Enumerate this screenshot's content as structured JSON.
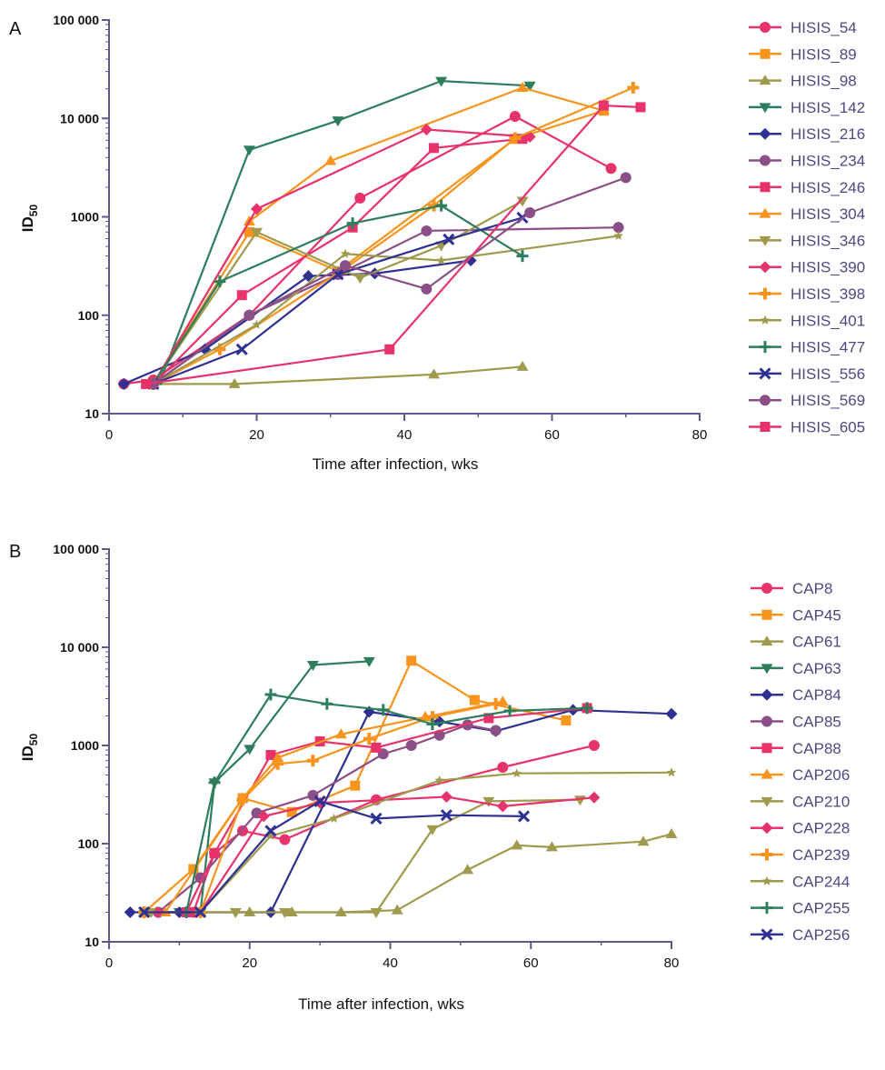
{
  "chart_data": [
    {
      "panel_label": "A",
      "type": "line",
      "xlabel": "Time after infection, wks",
      "ylabel": "ID",
      "ylabel_sub": "50",
      "xlim": [
        0,
        80
      ],
      "ylim": [
        10,
        100000
      ],
      "yscale": "log",
      "xticks": [
        0,
        20,
        40,
        60,
        80
      ],
      "yticks": [
        {
          "value": 10,
          "label": "10"
        },
        {
          "value": 100,
          "label": "100"
        },
        {
          "value": 1000,
          "label": "1000"
        },
        {
          "value": 10000,
          "label": "10 000"
        },
        {
          "value": 100000,
          "label": "100 000"
        }
      ],
      "legend_position": "right",
      "series": [
        {
          "name": "HISIS_54",
          "color": "#e8336a",
          "marker": "circle",
          "points": [
            [
              2,
              20
            ],
            [
              6,
              22
            ],
            [
              19,
              100
            ],
            [
              34,
              1550
            ],
            [
              55,
              10500
            ],
            [
              68,
              3100
            ]
          ]
        },
        {
          "name": "HISIS_89",
          "color": "#f7941d",
          "marker": "square",
          "points": [
            [
              6,
              20
            ],
            [
              19,
              700
            ],
            [
              31,
              280
            ],
            [
              55,
              6200
            ],
            [
              67,
              12000
            ]
          ]
        },
        {
          "name": "HISIS_98",
          "color": "#9f9a4e",
          "marker": "triangle-up",
          "points": [
            [
              6,
              20
            ],
            [
              17,
              20
            ],
            [
              44,
              25
            ],
            [
              56,
              30
            ]
          ]
        },
        {
          "name": "HISIS_142",
          "color": "#2e7d5b",
          "marker": "triangle-down",
          "points": [
            [
              7,
              22
            ],
            [
              19,
              4800
            ],
            [
              31,
              9500
            ],
            [
              45,
              24000
            ],
            [
              57,
              21500
            ]
          ]
        },
        {
          "name": "HISIS_216",
          "color": "#2e3192",
          "marker": "diamond",
          "points": [
            [
              2,
              20
            ],
            [
              13,
              45
            ],
            [
              27,
              250
            ],
            [
              36,
              265
            ],
            [
              49,
              360
            ]
          ]
        },
        {
          "name": "HISIS_234",
          "color": "#8b4f87",
          "marker": "circle",
          "points": [
            [
              6,
              20
            ],
            [
              19,
              100
            ],
            [
              31,
              260
            ],
            [
              43,
              720
            ],
            [
              69,
              780
            ]
          ]
        },
        {
          "name": "HISIS_246",
          "color": "#e8336a",
          "marker": "square",
          "points": [
            [
              6,
              20
            ],
            [
              18,
              160
            ],
            [
              33,
              780
            ],
            [
              44,
              5000
            ],
            [
              56,
              6200
            ]
          ]
        },
        {
          "name": "HISIS_304",
          "color": "#f7941d",
          "marker": "triangle-up",
          "points": [
            [
              6,
              20
            ],
            [
              19,
              900
            ],
            [
              30,
              3700
            ],
            [
              56,
              20500
            ],
            [
              67,
              12000
            ]
          ]
        },
        {
          "name": "HISIS_346",
          "color": "#9f9a4e",
          "marker": "triangle-down",
          "points": [
            [
              6,
              20
            ],
            [
              20,
              700
            ],
            [
              34,
              240
            ],
            [
              45,
              510
            ],
            [
              56,
              1450
            ]
          ]
        },
        {
          "name": "HISIS_390",
          "color": "#e8336a",
          "marker": "diamond",
          "points": [
            [
              6,
              20
            ],
            [
              20,
              1200
            ],
            [
              43,
              7700
            ],
            [
              57,
              6500
            ]
          ]
        },
        {
          "name": "HISIS_398",
          "color": "#f7941d",
          "marker": "plus-square",
          "points": [
            [
              6,
              20
            ],
            [
              15,
              45
            ],
            [
              32,
              300
            ],
            [
              44,
              1300
            ],
            [
              55,
              6300
            ],
            [
              71,
              20500
            ]
          ]
        },
        {
          "name": "HISIS_401",
          "color": "#9f9a4e",
          "marker": "star",
          "points": [
            [
              6,
              20
            ],
            [
              20,
              80
            ],
            [
              32,
              420
            ],
            [
              45,
              360
            ],
            [
              69,
              640
            ]
          ]
        },
        {
          "name": "HISIS_477",
          "color": "#2e7d5b",
          "marker": "plus",
          "points": [
            [
              6,
              20
            ],
            [
              15,
              220
            ],
            [
              33,
              860
            ],
            [
              45,
              1300
            ],
            [
              56,
              400
            ]
          ]
        },
        {
          "name": "HISIS_556",
          "color": "#2e3192",
          "marker": "x",
          "points": [
            [
              6,
              20
            ],
            [
              18,
              45
            ],
            [
              31,
              260
            ],
            [
              46,
              590
            ],
            [
              56,
              980
            ]
          ]
        },
        {
          "name": "HISIS_569",
          "color": "#8b4f87",
          "marker": "circle",
          "points": [
            [
              6,
              20
            ],
            [
              19,
              100
            ],
            [
              32,
              320
            ],
            [
              43,
              185
            ],
            [
              57,
              1100
            ],
            [
              70,
              2500
            ]
          ]
        },
        {
          "name": "HISIS_605",
          "color": "#e8336a",
          "marker": "square",
          "points": [
            [
              5,
              20
            ],
            [
              38,
              45
            ],
            [
              67,
              13500
            ],
            [
              72,
              13000
            ]
          ]
        }
      ]
    },
    {
      "panel_label": "B",
      "type": "line",
      "xlabel": "Time after infection, wks",
      "ylabel": "ID",
      "ylabel_sub": "50",
      "xlim": [
        0,
        80
      ],
      "ylim": [
        10,
        100000
      ],
      "yscale": "log",
      "xticks": [
        0,
        20,
        40,
        60,
        80
      ],
      "yticks": [
        {
          "value": 10,
          "label": "10"
        },
        {
          "value": 100,
          "label": "100"
        },
        {
          "value": 1000,
          "label": "1000"
        },
        {
          "value": 10000,
          "label": "10 000"
        },
        {
          "value": 100000,
          "label": "100 000"
        }
      ],
      "legend_position": "right",
      "series": [
        {
          "name": "CAP8",
          "color": "#e8336a",
          "marker": "circle",
          "points": [
            [
              7,
              20
            ],
            [
              12,
              20
            ],
            [
              15,
              80
            ],
            [
              19,
              135
            ],
            [
              25,
              110
            ],
            [
              38,
              280
            ],
            [
              56,
              600
            ],
            [
              69,
              1000
            ]
          ]
        },
        {
          "name": "CAP45",
          "color": "#f7941d",
          "marker": "square",
          "points": [
            [
              5,
              20
            ],
            [
              12,
              55
            ],
            [
              19,
              290
            ],
            [
              26,
              210
            ],
            [
              35,
              390
            ],
            [
              43,
              7300
            ],
            [
              52,
              2900
            ],
            [
              65,
              1800
            ]
          ]
        },
        {
          "name": "CAP61",
          "color": "#9f9a4e",
          "marker": "triangle-up",
          "points": [
            [
              5,
              20
            ],
            [
              13,
              20
            ],
            [
              20,
              20
            ],
            [
              26,
              20
            ],
            [
              33,
              20
            ],
            [
              41,
              21
            ],
            [
              51,
              54
            ],
            [
              58,
              96
            ],
            [
              63,
              92
            ],
            [
              76,
              105
            ],
            [
              80,
              125
            ]
          ]
        },
        {
          "name": "CAP63",
          "color": "#2e7d5b",
          "marker": "triangle-down",
          "points": [
            [
              10,
              20
            ],
            [
              13,
              20
            ],
            [
              15,
              420
            ],
            [
              20,
              920
            ],
            [
              29,
              6600
            ],
            [
              37,
              7200
            ]
          ]
        },
        {
          "name": "CAP84",
          "color": "#2e3192",
          "marker": "diamond",
          "points": [
            [
              3,
              20
            ],
            [
              10,
              20
            ],
            [
              23,
              20
            ],
            [
              37,
              2200
            ],
            [
              47,
              1750
            ],
            [
              55,
              1400
            ],
            [
              66,
              2300
            ],
            [
              80,
              2100
            ]
          ]
        },
        {
          "name": "CAP85",
          "color": "#8b4f87",
          "marker": "circle",
          "points": [
            [
              7,
              20
            ],
            [
              13,
              45
            ],
            [
              21,
              205
            ],
            [
              29,
              310
            ],
            [
              39,
              820
            ],
            [
              43,
              1000
            ],
            [
              47,
              1270
            ],
            [
              51,
              1620
            ],
            [
              55,
              1420
            ]
          ]
        },
        {
          "name": "CAP88",
          "color": "#e8336a",
          "marker": "square",
          "points": [
            [
              11,
              20
            ],
            [
              15,
              80
            ],
            [
              23,
              800
            ],
            [
              30,
              1100
            ],
            [
              38,
              950
            ],
            [
              54,
              1900
            ],
            [
              68,
              2400
            ]
          ]
        },
        {
          "name": "CAP206",
          "color": "#f7941d",
          "marker": "triangle-up",
          "points": [
            [
              8,
              20
            ],
            [
              19,
              290
            ],
            [
              24,
              750
            ],
            [
              33,
              1300
            ],
            [
              45,
              1950
            ],
            [
              56,
              2800
            ]
          ]
        },
        {
          "name": "CAP210",
          "color": "#9f9a4e",
          "marker": "triangle-down",
          "points": [
            [
              6,
              20
            ],
            [
              18,
              20
            ],
            [
              25,
              20
            ],
            [
              38,
              20
            ],
            [
              46,
              140
            ],
            [
              54,
              270
            ],
            [
              67,
              280
            ]
          ]
        },
        {
          "name": "CAP228",
          "color": "#e8336a",
          "marker": "diamond",
          "points": [
            [
              7,
              20
            ],
            [
              13,
              20
            ],
            [
              22,
              190
            ],
            [
              30,
              260
            ],
            [
              48,
              300
            ],
            [
              56,
              240
            ],
            [
              69,
              295
            ]
          ]
        },
        {
          "name": "CAP239",
          "color": "#f7941d",
          "marker": "plus-square",
          "points": [
            [
              5,
              20
            ],
            [
              13,
              20
            ],
            [
              19,
              280
            ],
            [
              24,
              650
            ],
            [
              29,
              700
            ],
            [
              37,
              1170
            ],
            [
              46,
              1950
            ],
            [
              55,
              2650
            ]
          ]
        },
        {
          "name": "CAP244",
          "color": "#9f9a4e",
          "marker": "star",
          "points": [
            [
              5,
              20
            ],
            [
              13,
              20
            ],
            [
              23,
              120
            ],
            [
              32,
              180
            ],
            [
              47,
              440
            ],
            [
              58,
              520
            ],
            [
              80,
              530
            ]
          ]
        },
        {
          "name": "CAP255",
          "color": "#2e7d5b",
          "marker": "plus",
          "points": [
            [
              11,
              20
            ],
            [
              15,
              420
            ],
            [
              23,
              3300
            ],
            [
              31,
              2650
            ],
            [
              39,
              2300
            ],
            [
              46,
              1650
            ],
            [
              57,
              2250
            ],
            [
              68,
              2400
            ]
          ]
        },
        {
          "name": "CAP256",
          "color": "#2e3192",
          "marker": "x",
          "points": [
            [
              5,
              20
            ],
            [
              13,
              20
            ],
            [
              23,
              135
            ],
            [
              30,
              270
            ],
            [
              38,
              180
            ],
            [
              48,
              195
            ],
            [
              59,
              190
            ]
          ]
        }
      ]
    }
  ]
}
